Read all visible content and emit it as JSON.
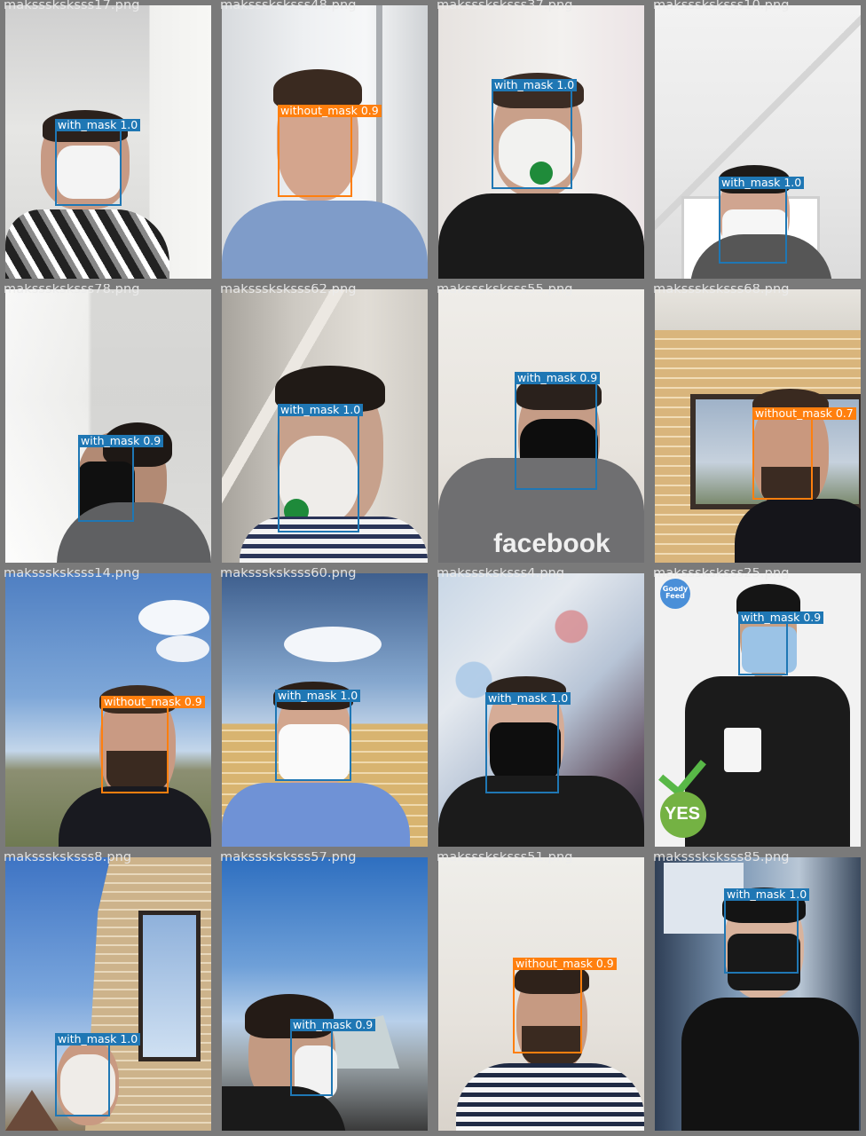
{
  "tiles": [
    {
      "file": "maksssksksss17.png",
      "detections": [
        {
          "label": "with_mask",
          "score": "1.0",
          "cls": "blue"
        }
      ]
    },
    {
      "file": "maksssksksss48.png",
      "detections": [
        {
          "label": "without_mask",
          "score": "0.9",
          "cls": "orange"
        }
      ]
    },
    {
      "file": "maksssksksss37.png",
      "detections": [
        {
          "label": "with_mask",
          "score": "1.0",
          "cls": "blue"
        }
      ]
    },
    {
      "file": "maksssksksss10.png",
      "detections": [
        {
          "label": "with_mask",
          "score": "1.0",
          "cls": "blue"
        }
      ]
    },
    {
      "file": "maksssksksss78.png",
      "detections": [
        {
          "label": "with_mask",
          "score": "0.9",
          "cls": "blue"
        }
      ]
    },
    {
      "file": "maksssksksss62.png",
      "detections": [
        {
          "label": "with_mask",
          "score": "1.0",
          "cls": "blue"
        }
      ]
    },
    {
      "file": "maksssksksss55.png",
      "detections": [
        {
          "label": "with_mask",
          "score": "0.9",
          "cls": "blue"
        }
      ],
      "shirt_text": "facebook"
    },
    {
      "file": "maksssksksss68.png",
      "detections": [
        {
          "label": "without_mask",
          "score": "0.7",
          "cls": "orange"
        }
      ]
    },
    {
      "file": "maksssksksss14.png",
      "detections": [
        {
          "label": "without_mask",
          "score": "0.9",
          "cls": "orange"
        }
      ]
    },
    {
      "file": "maksssksksss60.png",
      "detections": [
        {
          "label": "with_mask",
          "score": "1.0",
          "cls": "blue"
        }
      ]
    },
    {
      "file": "maksssksksss4.png",
      "detections": [
        {
          "label": "with_mask",
          "score": "1.0",
          "cls": "blue"
        }
      ]
    },
    {
      "file": "maksssksksss25.png",
      "detections": [
        {
          "label": "with_mask",
          "score": "0.9",
          "cls": "blue"
        }
      ],
      "logo_text": "Goody Feed",
      "badge_text": "YES"
    },
    {
      "file": "maksssksksss8.png",
      "detections": [
        {
          "label": "with_mask",
          "score": "1.0",
          "cls": "blue"
        }
      ]
    },
    {
      "file": "maksssksksss57.png",
      "detections": [
        {
          "label": "with_mask",
          "score": "0.9",
          "cls": "blue"
        }
      ]
    },
    {
      "file": "maksssksksss51.png",
      "detections": [
        {
          "label": "without_mask",
          "score": "0.9",
          "cls": "orange"
        }
      ]
    },
    {
      "file": "maksssksksss85.png",
      "detections": [
        {
          "label": "with_mask",
          "score": "1.0",
          "cls": "blue"
        }
      ]
    }
  ],
  "colors": {
    "with_mask": "#1f77b4",
    "without_mask": "#ff7f0e",
    "border": "#7a7a7a"
  }
}
